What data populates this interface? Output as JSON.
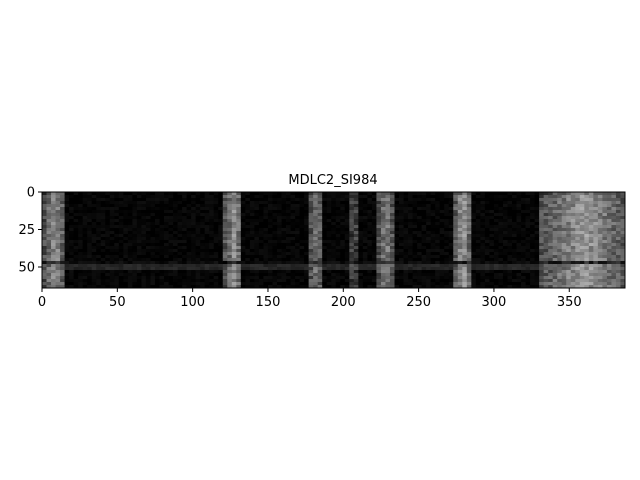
{
  "chart_data": {
    "type": "heatmap",
    "title": "MDLC2_SI984",
    "xlabel": "",
    "ylabel": "",
    "colormap": "gray",
    "xlim": [
      0,
      387
    ],
    "ylim": [
      64,
      0
    ],
    "x_ticks": [
      0,
      50,
      100,
      150,
      200,
      250,
      300,
      350
    ],
    "y_ticks": [
      0,
      25,
      50
    ],
    "grid": false,
    "n_rows": 64,
    "n_cols": 387,
    "bright_bands": [
      {
        "x_start": 0,
        "x_end": 14,
        "intensity": 0.55
      },
      {
        "x_start": 120,
        "x_end": 132,
        "intensity": 0.55
      },
      {
        "x_start": 175,
        "x_end": 186,
        "intensity": 0.45
      },
      {
        "x_start": 203,
        "x_end": 208,
        "intensity": 0.3
      },
      {
        "x_start": 222,
        "x_end": 232,
        "intensity": 0.5
      },
      {
        "x_start": 273,
        "x_end": 283,
        "intensity": 0.6
      },
      {
        "x_start": 330,
        "x_end": 387,
        "intensity": 0.6
      }
    ],
    "bright_row_band": {
      "y_start": 46,
      "y_end": 52,
      "intensity": 0.25
    }
  }
}
